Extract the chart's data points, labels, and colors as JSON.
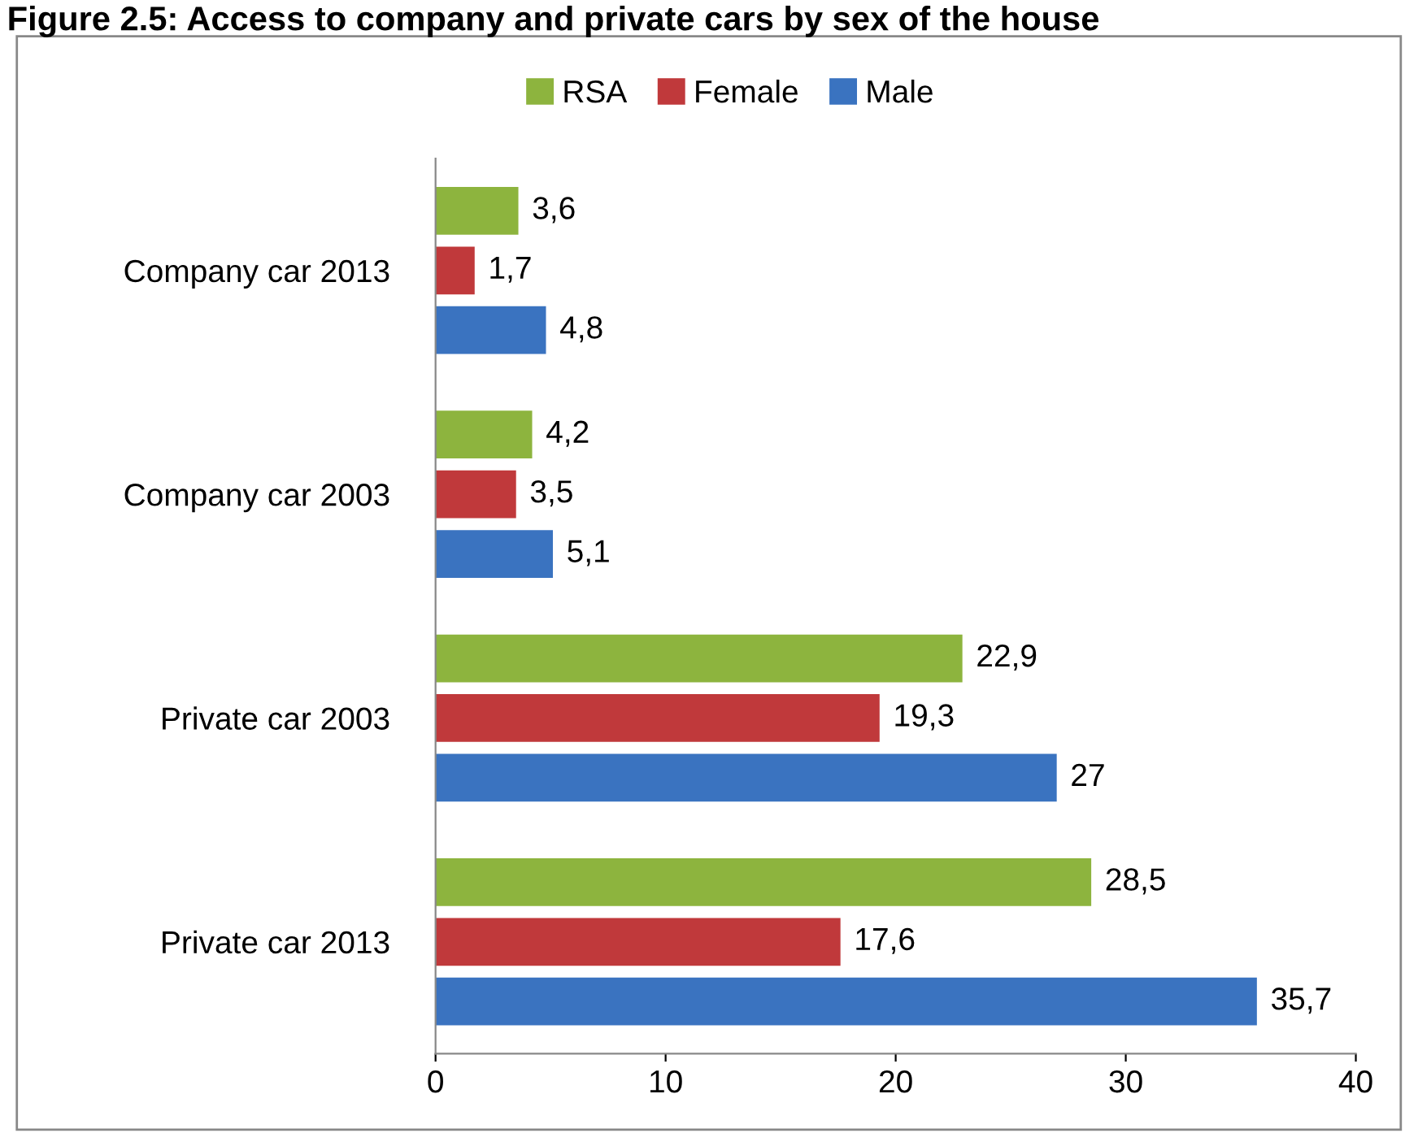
{
  "chart_data": {
    "type": "bar",
    "orientation": "horizontal",
    "title": "Figure 2.5: Access to company and private cars by sex of the house",
    "categories": [
      "Company car 2013",
      "Company car 2003",
      "Private car 2003",
      "Private car 2013"
    ],
    "series": [
      {
        "name": "RSA",
        "color": "#8db43e",
        "values": [
          3.6,
          4.2,
          22.9,
          28.5
        ],
        "value_labels": [
          "3,6",
          "4,2",
          "22,9",
          "28,5"
        ]
      },
      {
        "name": "Female",
        "color": "#c0393b",
        "values": [
          1.7,
          3.5,
          19.3,
          17.6
        ],
        "value_labels": [
          "1,7",
          "3,5",
          "19,3",
          "17,6"
        ]
      },
      {
        "name": "Male",
        "color": "#3a73c0",
        "values": [
          4.8,
          5.1,
          27,
          35.7
        ],
        "value_labels": [
          "4,8",
          "5,1",
          "27",
          "35,7"
        ]
      }
    ],
    "xlim": [
      0,
      40
    ],
    "xticks": [
      0,
      10,
      20,
      30,
      40
    ],
    "legend": "top",
    "grid": false
  }
}
